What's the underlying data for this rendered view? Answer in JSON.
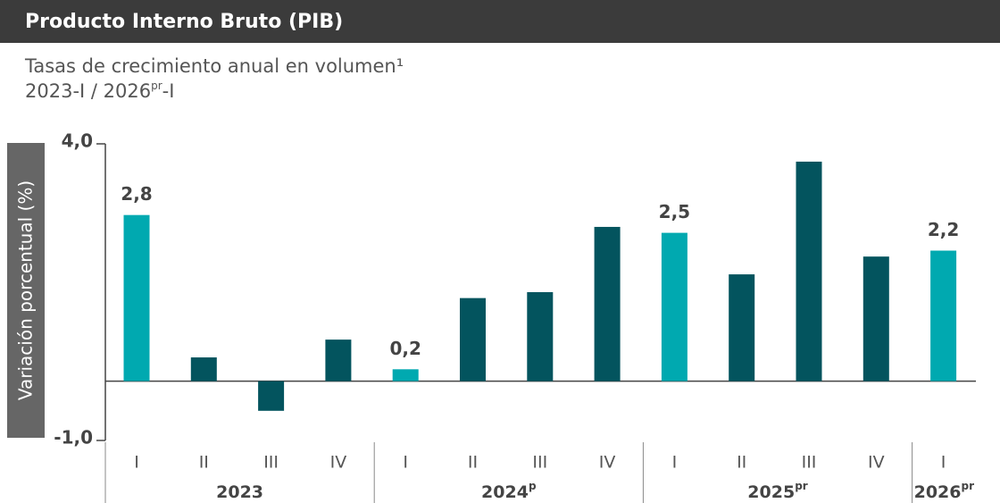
{
  "chart_data": {
    "type": "bar",
    "title": "Producto Interno Bruto (PIB)",
    "subtitle_line1": "Tasas de crecimiento anual en volumen¹",
    "subtitle_line2": [
      "2023-I / 2026",
      "pr",
      "-I"
    ],
    "y_label": "Variación porcentual (%)",
    "categories": [
      "I",
      "II",
      "III",
      "IV",
      "I",
      "II",
      "III",
      "IV",
      "I",
      "II",
      "III",
      "IV",
      "I"
    ],
    "groups": [
      {
        "label": "2023",
        "size": 4
      },
      {
        "label": "2024",
        "sup": "p",
        "size": 4
      },
      {
        "label": "2025",
        "sup": "pr",
        "size": 4
      },
      {
        "label": "2026",
        "sup": "pr",
        "size": 1
      }
    ],
    "values": [
      2.8,
      0.4,
      -0.5,
      0.7,
      0.2,
      1.4,
      1.5,
      2.6,
      2.5,
      1.8,
      3.7,
      2.1,
      2.2
    ],
    "value_labels": [
      "2,8",
      null,
      null,
      null,
      "0,2",
      null,
      null,
      null,
      "2,5",
      null,
      null,
      null,
      "2,2"
    ],
    "colors": [
      "#00a9b0",
      "#03545e",
      "#03545e",
      "#03545e",
      "#00a9b0",
      "#03545e",
      "#03545e",
      "#03545e",
      "#00a9b0",
      "#03545e",
      "#03545e",
      "#03545e",
      "#00a9b0"
    ],
    "ylim": [
      -1,
      4
    ],
    "yticks": [
      {
        "value": -1,
        "label": "-1,0"
      },
      {
        "value": 4,
        "label": "4,0"
      }
    ]
  }
}
